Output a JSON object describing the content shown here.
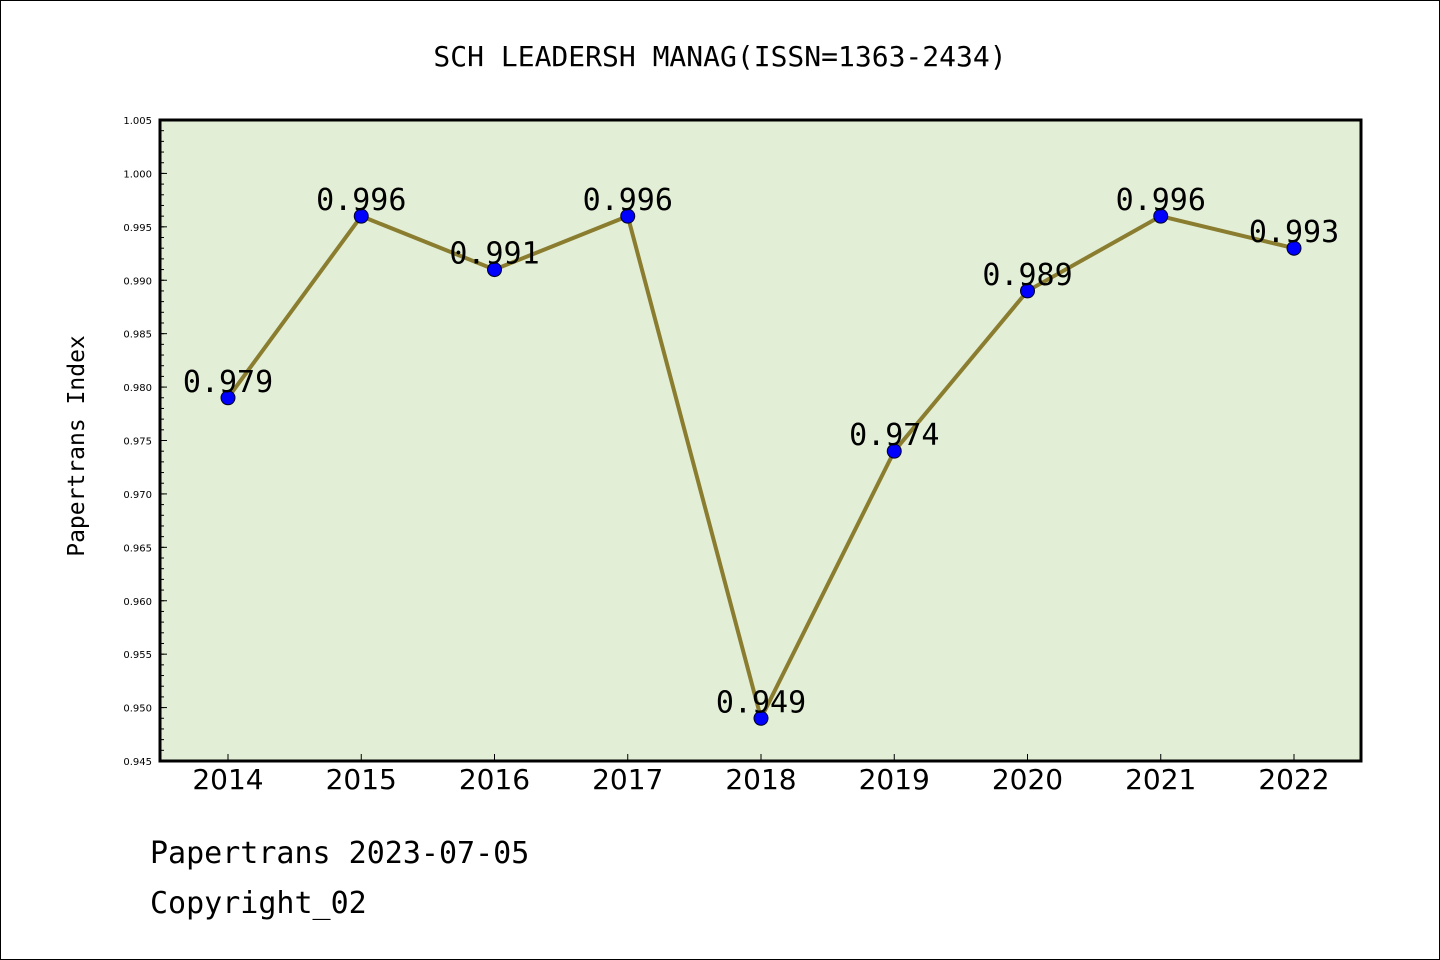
{
  "chart_data": {
    "type": "line",
    "title": "SCH LEADERSH MANAG(ISSN=1363-2434)",
    "ylabel": "Papertrans Index",
    "xlabel": "",
    "x": [
      "2014",
      "2015",
      "2016",
      "2017",
      "2018",
      "2019",
      "2020",
      "2021",
      "2022"
    ],
    "values": [
      0.979,
      0.996,
      0.991,
      0.996,
      0.949,
      0.974,
      0.989,
      0.996,
      0.993
    ],
    "data_labels": [
      "0.979",
      "0.996",
      "0.991",
      "0.996",
      "0.949",
      "0.974",
      "0.989",
      "0.996",
      "0.993"
    ],
    "ylim": [
      0.945,
      1.005
    ],
    "yticks": [
      "0.945",
      "0.950",
      "0.955",
      "0.960",
      "0.965",
      "0.970",
      "0.975",
      "0.980",
      "0.985",
      "0.990",
      "0.995",
      "1.000",
      "1.005"
    ],
    "grid": false,
    "colors": {
      "plot_background": "#e2efd6",
      "line": "#8b7d2f",
      "marker": "#0000ff"
    }
  },
  "footer": {
    "line1": "Papertrans 2023-07-05",
    "line2": "Copyright_02"
  }
}
